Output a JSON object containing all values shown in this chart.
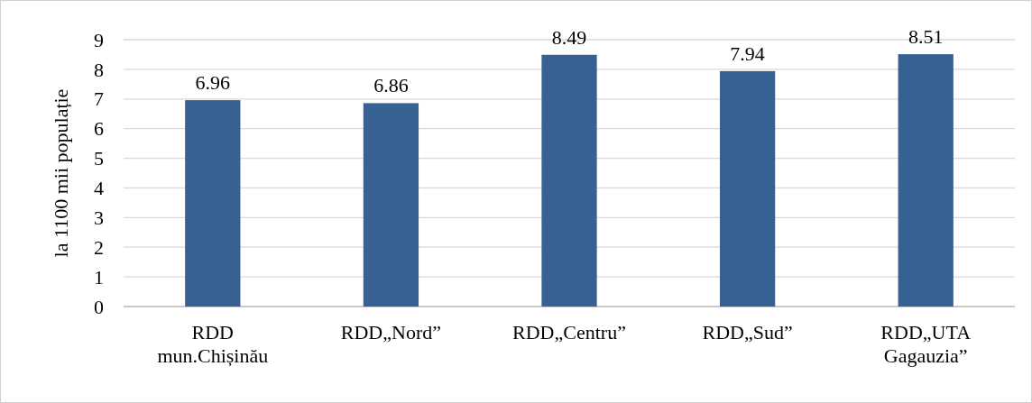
{
  "chart_data": {
    "type": "bar",
    "ylabel": "la 1100 mii populație",
    "categories": [
      "RDD\nmun.Chișinău",
      "RDD„Nord”",
      "RDD„Centru”",
      "RDD„Sud”",
      "RDD„UTA\nGagauzia”"
    ],
    "values": [
      6.96,
      6.86,
      8.49,
      7.94,
      8.51
    ],
    "color": "#376192",
    "ylim": [
      0,
      9
    ],
    "yticks": [
      0,
      1,
      2,
      3,
      4,
      5,
      6,
      7,
      8,
      9
    ],
    "grid": "y",
    "data_labels": true
  }
}
